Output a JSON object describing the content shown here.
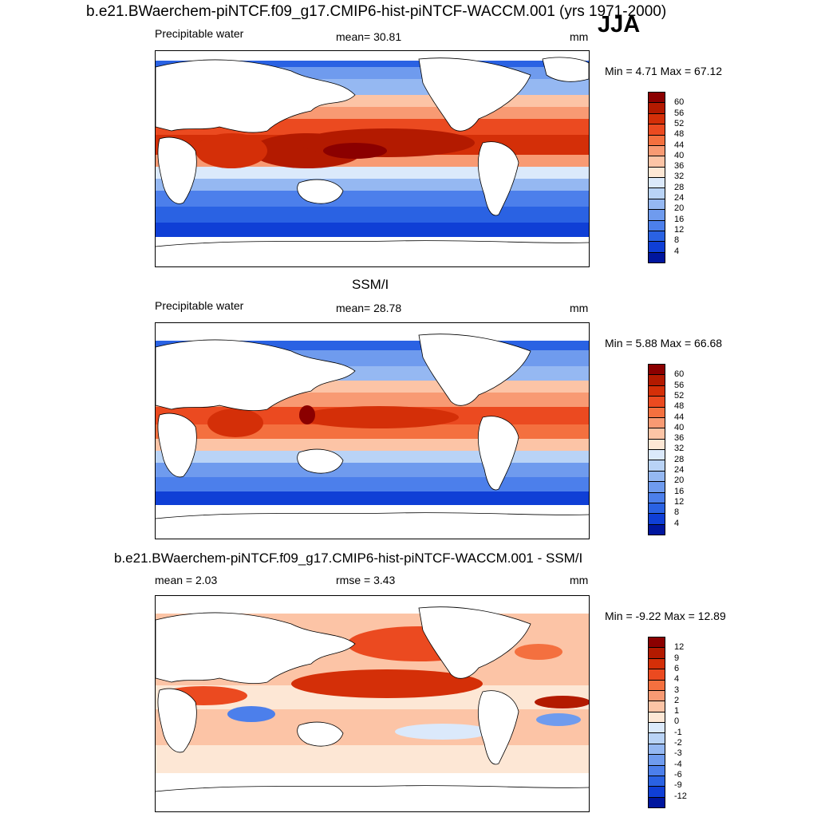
{
  "header": {
    "title": "b.e21.BWaerchem-piNTCF.f09_g17.CMIP6-hist-piNTCF-WACCM.001 (yrs 1971-2000)",
    "season": "JJA"
  },
  "panels": [
    {
      "id": "model",
      "left": "Precipitable water",
      "center": "mean=  30.81",
      "right": "mm",
      "minmax": "Min =   4.71 Max =  67.12",
      "ticks": [
        "60",
        "56",
        "52",
        "48",
        "44",
        "40",
        "36",
        "32",
        "28",
        "24",
        "20",
        "16",
        "12",
        "8",
        "4"
      ]
    },
    {
      "id": "obs",
      "heading": "SSM/I",
      "left": "Precipitable water",
      "center": "mean=  28.78",
      "right": "mm",
      "minmax": "Min =   5.88 Max =  66.68",
      "ticks": [
        "60",
        "56",
        "52",
        "48",
        "44",
        "40",
        "36",
        "32",
        "28",
        "24",
        "20",
        "16",
        "12",
        "8",
        "4"
      ]
    },
    {
      "id": "diff",
      "heading": "b.e21.BWaerchem-piNTCF.f09_g17.CMIP6-hist-piNTCF-WACCM.001 - SSM/I",
      "left": "mean =   2.03",
      "center": "rmse =   3.43",
      "right": "mm",
      "minmax": "Min =  -9.22 Max =  12.89",
      "ticks": [
        "12",
        "9",
        "6",
        "4",
        "3",
        "2",
        "1",
        "0",
        "-1",
        "-2",
        "-3",
        "-4",
        "-6",
        "-9",
        "-12"
      ]
    }
  ],
  "colors": {
    "abs_scale": [
      "#8b0000",
      "#b31a00",
      "#d42f08",
      "#eb4a20",
      "#f4703f",
      "#f89a73",
      "#fcc4a6",
      "#fde7d5",
      "#dbe9fb",
      "#b9d3f6",
      "#95b8f2",
      "#6f9bee",
      "#4c7feb",
      "#2a62e3",
      "#0f3fd6",
      "#00169e"
    ],
    "diff_scale": [
      "#8b0000",
      "#b31a00",
      "#d42f08",
      "#eb4a20",
      "#f4703f",
      "#f89a73",
      "#fcc4a6",
      "#fde7d5",
      "#dbe9fb",
      "#b9d3f6",
      "#95b8f2",
      "#6f9bee",
      "#4c7feb",
      "#2a62e3",
      "#0f3fd6",
      "#00169e"
    ],
    "land": "#ffffff",
    "coast": "#000000"
  }
}
